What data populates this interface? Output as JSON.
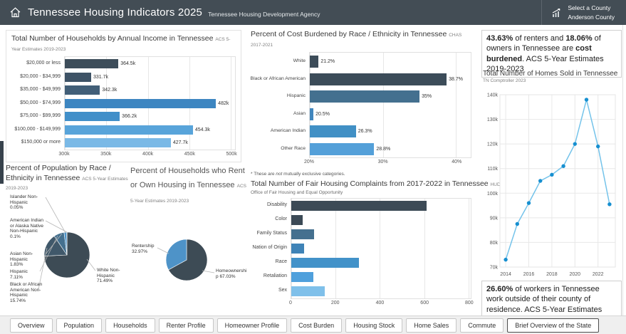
{
  "header": {
    "title": "Tennessee Housing Indicators 2025",
    "subtitle": "Tennessee Housing Development Agency",
    "county_selector": {
      "label": "Select a County",
      "value": "Anderson County"
    }
  },
  "chart_data": [
    {
      "type": "bar",
      "title": "Total Number of Households by Annual Income in Tennessee",
      "source": "ACS 5-Year Estimates 2019-2023",
      "orientation": "horizontal",
      "xlim": [
        300000,
        505000
      ],
      "ticks": [
        {
          "value": 300000,
          "label": "300k"
        },
        {
          "value": 350000,
          "label": "350k"
        },
        {
          "value": 400000,
          "label": "400k"
        },
        {
          "value": 450000,
          "label": "450k"
        },
        {
          "value": 500000,
          "label": "500k"
        }
      ],
      "rows": [
        {
          "label": "$20,000 or less",
          "value": 364500,
          "display": "364.5k",
          "color": "#3d4d5a"
        },
        {
          "label": "$20,000 - $34,999",
          "value": 331700,
          "display": "331.7k",
          "color": "#3e5366"
        },
        {
          "label": "$35,000 - $49,999",
          "value": 342300,
          "display": "342.3k",
          "color": "#425f78"
        },
        {
          "label": "$50,000 - $74,999",
          "value": 482000,
          "display": "482k",
          "color": "#3d86c1"
        },
        {
          "label": "$75,000 - $99,999",
          "value": 366200,
          "display": "366.2k",
          "color": "#418fc9"
        },
        {
          "label": "$100,000 - $149,999",
          "value": 454300,
          "display": "454.3k",
          "color": "#58a4da"
        },
        {
          "label": "$150,000 or more",
          "value": 427700,
          "display": "427.7k",
          "color": "#7ab9e6"
        }
      ]
    },
    {
      "type": "bar",
      "title": "Percent of Cost Burdened by Race / Ethnicity in Tennessee",
      "source": "CHAS 2017-2021",
      "orientation": "horizontal",
      "footnote": {
        "pre": "* These are ",
        "italic": "not",
        "post": " mutually exclusive categories."
      },
      "xlim": [
        20,
        42
      ],
      "ticks": [
        {
          "value": 20,
          "label": "20%"
        },
        {
          "value": 30,
          "label": "30%"
        },
        {
          "value": 40,
          "label": "40%"
        }
      ],
      "rows": [
        {
          "label": "White",
          "value": 21.2,
          "display": "21.2%",
          "color": "#3c4c59"
        },
        {
          "label": "Black or African American",
          "value": 38.7,
          "display": "38.7%",
          "color": "#3c4c59"
        },
        {
          "label": "Hispanic",
          "value": 35,
          "display": "35%",
          "color": "#44708f"
        },
        {
          "label": "Asian",
          "value": 20.5,
          "display": "20.5%",
          "color": "#4186bd"
        },
        {
          "label": "American Indian",
          "value": 26.3,
          "display": "26.3%",
          "color": "#4190c5"
        },
        {
          "label": "Other Race",
          "value": 28.8,
          "display": "28.8%",
          "color": "#54a0d9"
        }
      ]
    },
    {
      "type": "pie",
      "title": "Percent of Population by Race / Ethnicity in Tennessee",
      "source": "ACS 5-Year Estimates 2019-2023",
      "slices": [
        {
          "label": "White Non-Hispanic",
          "pct": "71.49%",
          "value": 71.49,
          "color": "#3d4b55"
        },
        {
          "label": "Black or African American Non-Hispanic",
          "pct": "15.74%",
          "value": 15.74,
          "color": "#40586a"
        },
        {
          "label": "Hispanic",
          "pct": "7.11%",
          "value": 7.11,
          "color": "#44708f"
        },
        {
          "label": "Asian Non-Hispanic",
          "pct": "1.83%",
          "value": 1.83,
          "color": "#4c93c8"
        },
        {
          "label": "American Indian or Alaska Native Non-Hispanic",
          "pct": "0.1%",
          "value": 0.1,
          "color": "#85c2ea"
        },
        {
          "label": "Islander Non-Hispanic",
          "pct": "0.05%",
          "value": 0.05,
          "color": "#b5daf2"
        }
      ]
    },
    {
      "type": "pie",
      "title": "Percent of Households who Rent or Own Housing in Tennessee",
      "source": "ACS 5-Year Estimates 2019-2023",
      "slices": [
        {
          "label": "Homeownership",
          "pct": "67.03%",
          "value": 67.03,
          "color": "#3d4b55"
        },
        {
          "label": "Rentership",
          "pct": "32.97%",
          "value": 32.97,
          "color": "#4e93c8"
        }
      ]
    },
    {
      "type": "bar",
      "title": "Total Number of Fair Housing Complaints from 2017-2022 in Tennessee",
      "source": "HUD",
      "source2": "Office of Fair Housing and Equal Opportunity",
      "orientation": "horizontal",
      "xlim": [
        0,
        810
      ],
      "ticks": [
        {
          "value": 0,
          "label": "0"
        },
        {
          "value": 200,
          "label": "200"
        },
        {
          "value": 400,
          "label": "400"
        },
        {
          "value": 600,
          "label": "600"
        },
        {
          "value": 800,
          "label": "800"
        }
      ],
      "rows": [
        {
          "label": "Disability",
          "value": 612,
          "color": "#3c4a56"
        },
        {
          "label": "Color",
          "value": 51,
          "color": "#3c4a56"
        },
        {
          "label": "Family Status",
          "value": 102,
          "color": "#45708f"
        },
        {
          "label": "Nation of Origin",
          "value": 57,
          "color": "#3f83b7"
        },
        {
          "label": "Race",
          "value": 306,
          "color": "#4292c9"
        },
        {
          "label": "Retaliation",
          "value": 99,
          "color": "#4fa0dc"
        },
        {
          "label": "Sex",
          "value": 150,
          "color": "#7fc0ea"
        }
      ]
    },
    {
      "type": "line",
      "title": "Total Number of Homes Sold in Tennessee",
      "source": "TN Comptroller 2023",
      "x": [
        2014,
        2015,
        2016,
        2017,
        2018,
        2019,
        2020,
        2021,
        2022,
        2023
      ],
      "y": [
        73000,
        87500,
        96000,
        105000,
        107500,
        111000,
        120000,
        138000,
        119000,
        95500
      ],
      "ylim": [
        70000,
        140000
      ],
      "yticks": [
        {
          "value": 70000,
          "label": "70k"
        },
        {
          "value": 80000,
          "label": "80k"
        },
        {
          "value": 90000,
          "label": "90k"
        },
        {
          "value": 100000,
          "label": "100k"
        },
        {
          "value": 110000,
          "label": "110k"
        },
        {
          "value": 120000,
          "label": "120k"
        },
        {
          "value": 130000,
          "label": "130k"
        },
        {
          "value": 140000,
          "label": "140k"
        }
      ],
      "xticks": [
        {
          "value": 2014,
          "label": "2014"
        },
        {
          "value": 2016,
          "label": "2016"
        },
        {
          "value": 2018,
          "label": "2018"
        },
        {
          "value": 2020,
          "label": "2020"
        },
        {
          "value": 2022,
          "label": "2022"
        }
      ],
      "line_color": "#74c3ea",
      "marker_color": "#168fd0"
    }
  ],
  "stats": {
    "cost_burden": {
      "bold1": "43.63%",
      "text1": " of renters and ",
      "bold2": "18.06%",
      "text2": " of owners in Tennessee are ",
      "bold3": "cost burdened",
      "text3": ". ACS 5-Year Estimates 2019-2023"
    },
    "commute": {
      "bold": "26.60%",
      "text": " of workers in Tennessee work outside of their county of residence. ACS 5-Year Estimates 2019-2023"
    }
  },
  "tabs": {
    "items": [
      "Overview",
      "Population",
      "Households",
      "Renter Profile",
      "Homeowner Profile",
      "Cost Burden",
      "Housing Stock",
      "Home Sales",
      "Commute",
      "Brief Overview of the State"
    ],
    "selected": "Brief Overview of the State"
  }
}
